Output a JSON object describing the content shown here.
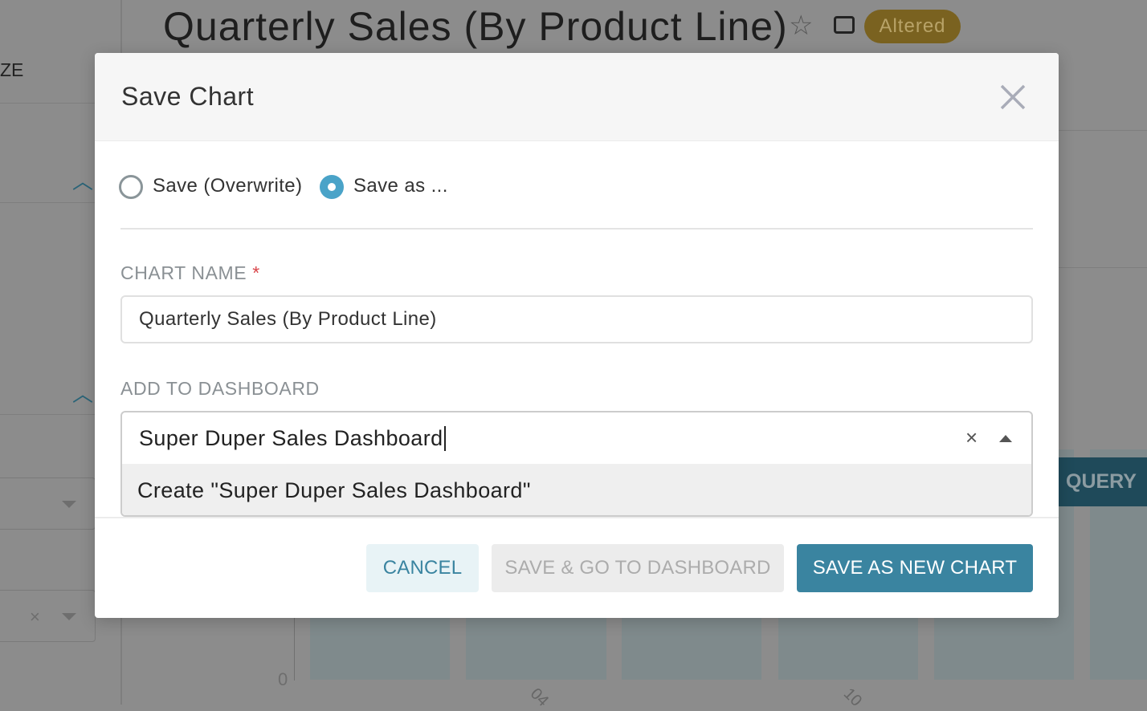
{
  "background": {
    "chart_title": "Quarterly Sales (By Product Line)",
    "altered_badge": "Altered",
    "sidebar_partial_label": "ZE",
    "run_query_partial": "QUERY",
    "y_axis_zero": "0",
    "x_tick_1": "04",
    "x_tick_2": "10",
    "badge_color": "#7a6220",
    "icons": [
      "star-icon",
      "edit-icon",
      "chevron-up-icon",
      "caret-down-icon",
      "clear-icon"
    ]
  },
  "modal": {
    "title": "Save Chart",
    "close_icon": "close-icon",
    "radio_overwrite": {
      "label": "Save (Overwrite)",
      "checked": false
    },
    "radio_save_as": {
      "label": "Save as ...",
      "checked": true
    },
    "chart_name_label": "CHART NAME",
    "required_mark": "*",
    "chart_name_value": "Quarterly Sales (By Product Line)",
    "dashboard_label": "ADD TO DASHBOARD",
    "dashboard_value": "Super Duper Sales Dashboard",
    "dashboard_option": "Create \"Super Duper Sales Dashboard\"",
    "buttons": {
      "cancel": "CANCEL",
      "save_go": "SAVE & GO TO DASHBOARD",
      "save_new": "SAVE AS NEW CHART"
    },
    "accent_color": "#3a84a0"
  }
}
